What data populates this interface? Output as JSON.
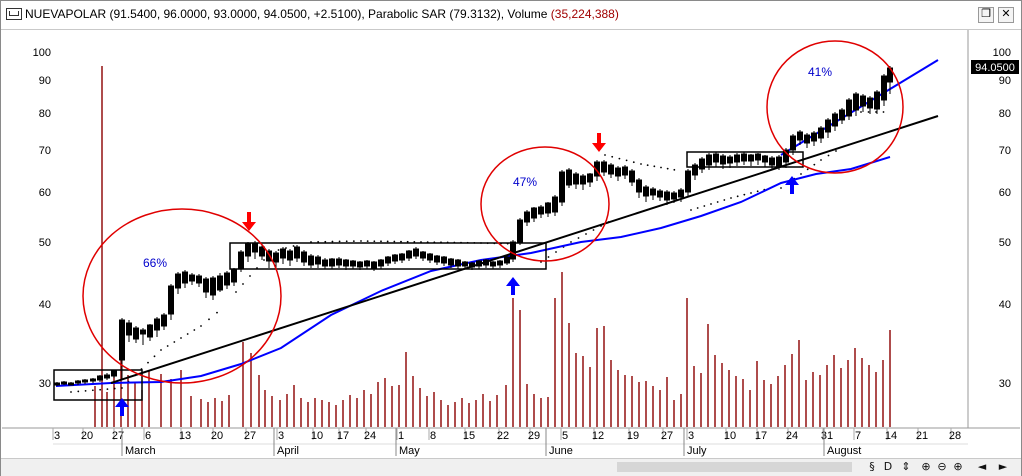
{
  "window": {
    "title_main": "NUEVAPOLAR (91.5400, 96.0000, 93.0000, 94.0500, +2.5100),",
    "title_indicator": " Parabolic SAR (79.3132), Volume ",
    "title_volume": "(35,224,388)",
    "restore_icon": "restore-icon",
    "close_icon": "close-icon"
  },
  "axis": {
    "price_ticks": [
      "100",
      "90",
      "80",
      "70",
      "60",
      "50",
      "40",
      "30"
    ],
    "last_price": "94.0500",
    "date_ticks": [
      "3",
      "20",
      "27",
      "6",
      "13",
      "20",
      "27",
      "3",
      "10",
      "17",
      "24",
      "1",
      "8",
      "15",
      "22",
      "29",
      "5",
      "12",
      "19",
      "27",
      "3",
      "10",
      "17",
      "24",
      "31",
      "7",
      "14",
      "21",
      "28"
    ],
    "months": [
      "March",
      "April",
      "May",
      "June",
      "July",
      "August"
    ]
  },
  "annotations": {
    "pct_1": "66%",
    "pct_2": "47%",
    "pct_3": "41%"
  },
  "nav": {
    "icons": [
      "§",
      "D",
      "⇕",
      "⊕",
      "⊖",
      "⊕",
      "◄",
      "►"
    ]
  },
  "colors": {
    "candle": "#000000",
    "ma_line": "#0000ff",
    "trend_line": "#000000",
    "circle": "#e00000",
    "volume": "#8b0000",
    "sell_arrow": "#ff0000",
    "buy_arrow": "#0000ff"
  },
  "chart_data": {
    "type": "candlestick",
    "price_scale": "log",
    "ylim": [
      27,
      110
    ],
    "series": [
      {
        "name": "NUEVAPOLAR",
        "type": "candlestick"
      },
      {
        "name": "Parabolic SAR",
        "type": "dots"
      },
      {
        "name": "Volume",
        "type": "bar"
      }
    ],
    "last_close": 94.05
  }
}
